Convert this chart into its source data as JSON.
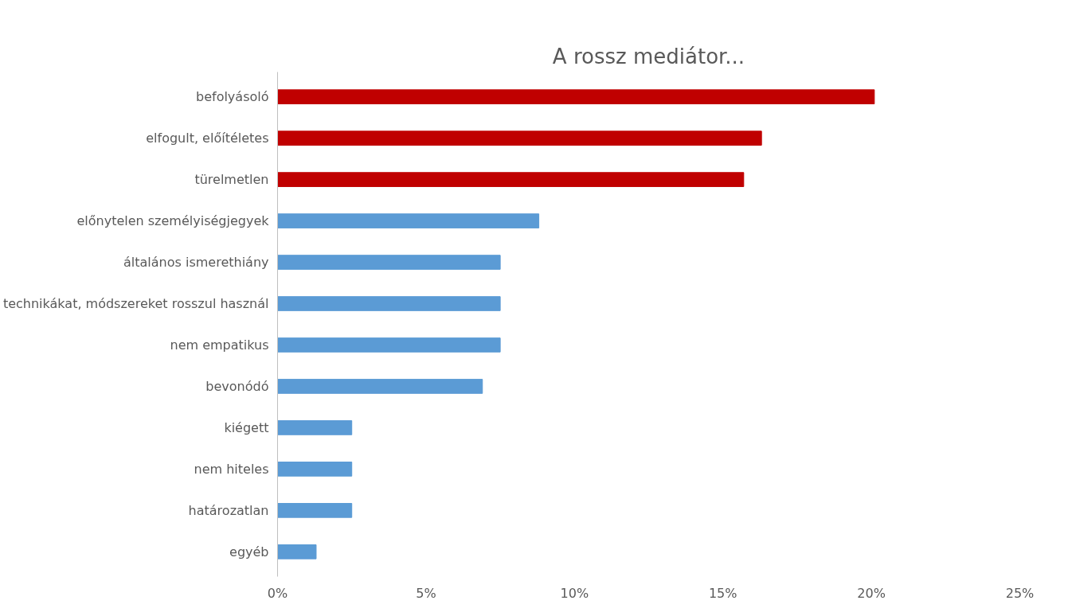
{
  "chart_data": {
    "type": "bar",
    "orientation": "horizontal",
    "title": "A rossz mediátor...",
    "categories": [
      "befolyásoló",
      "elfogult, előítéletes",
      "türelmetlen",
      "előnytelen személyiségjegyek",
      "általános ismerethiány",
      "technikákat, módszereket rosszul használ",
      "nem empatikus",
      "bevonódó",
      "kiégett",
      "nem hiteles",
      "határozatlan",
      "egyéb"
    ],
    "values": [
      20.1,
      16.3,
      15.7,
      8.8,
      7.5,
      7.5,
      7.5,
      6.9,
      2.5,
      2.5,
      2.5,
      1.3
    ],
    "colors": [
      "#c00000",
      "#c00000",
      "#c00000",
      "#5b9bd5",
      "#5b9bd5",
      "#5b9bd5",
      "#5b9bd5",
      "#5b9bd5",
      "#5b9bd5",
      "#5b9bd5",
      "#5b9bd5",
      "#5b9bd5"
    ],
    "xlim": [
      0,
      25
    ],
    "xticks": [
      {
        "value": 0,
        "label": "0%"
      },
      {
        "value": 5,
        "label": "5%"
      },
      {
        "value": 10,
        "label": "10%"
      },
      {
        "value": 15,
        "label": "15%"
      },
      {
        "value": 20,
        "label": "20%"
      },
      {
        "value": 25,
        "label": "25%"
      }
    ],
    "grid": false
  }
}
